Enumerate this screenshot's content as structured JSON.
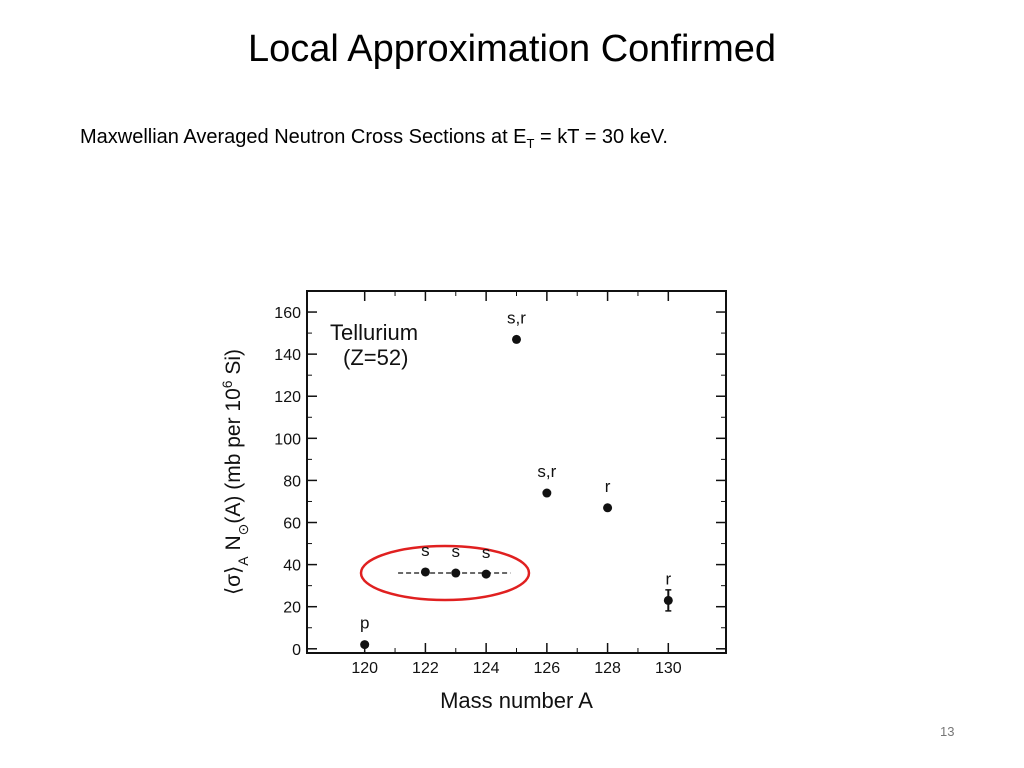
{
  "title": "Local Approximation Confirmed",
  "subtitle": [
    {
      "text": "Maxwellian Averaged Neutron Cross Sections at E"
    },
    {
      "text": "T",
      "sub": true
    },
    {
      "text": " = kT = 30 keV."
    }
  ],
  "page_number": "13",
  "chart_data": {
    "type": "scatter",
    "x_label": "Mass number  A",
    "y_label": [
      {
        "text": "⟨σ⟩"
      },
      {
        "text": "A",
        "sub": true
      },
      {
        "text": " N"
      },
      {
        "text": "⊙",
        "sub": true
      },
      {
        "text": "(A)  (mb per 10"
      },
      {
        "text": "6",
        "sup": true
      },
      {
        "text": " Si)"
      }
    ],
    "annotation": [
      "Tellurium",
      "(Z=52)"
    ],
    "x": [
      120,
      122,
      123,
      124,
      125,
      126,
      128,
      130
    ],
    "values": [
      2,
      36.5,
      36,
      35.5,
      147,
      74,
      67,
      23
    ],
    "errors": [
      null,
      null,
      null,
      null,
      null,
      null,
      null,
      5
    ],
    "point_labels": [
      "p",
      "s",
      "s",
      "s",
      "s,r",
      "s,r",
      "r",
      "r"
    ],
    "color": "#111111",
    "reference_line": {
      "x": [
        121.1,
        124.8
      ],
      "y": 36
    },
    "xlim": [
      118.1,
      131.9
    ],
    "xticks": [
      120,
      122,
      124,
      126,
      128,
      130
    ],
    "xminorticks": [
      121,
      123,
      125,
      127,
      129
    ],
    "ylim": [
      -2,
      170
    ],
    "yticks": [
      0,
      20,
      40,
      60,
      80,
      100,
      120,
      140,
      160
    ],
    "yminorticks": [
      10,
      30,
      50,
      70,
      90,
      110,
      130,
      150
    ]
  }
}
